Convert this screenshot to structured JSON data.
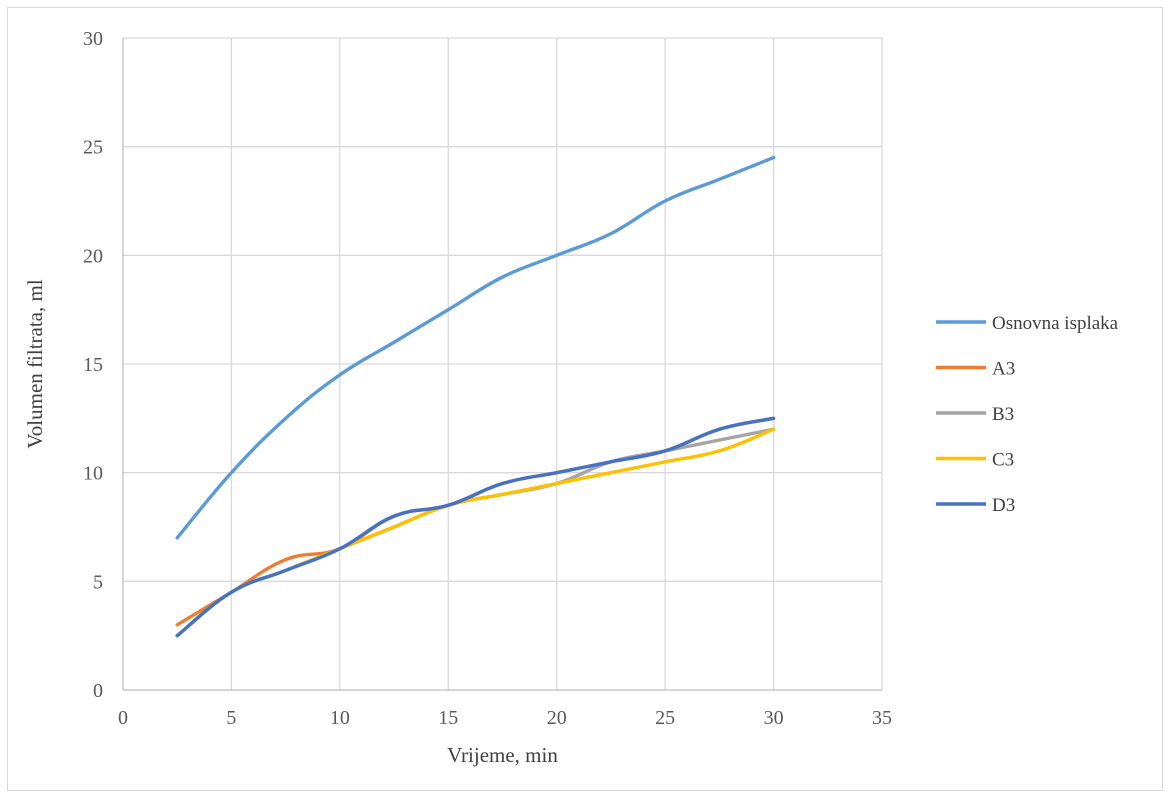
{
  "chart_data": {
    "type": "line",
    "title": "",
    "xlabel": "Vrijeme, min",
    "ylabel": "Volumen filtrata, ml",
    "xlim": [
      0,
      35
    ],
    "ylim": [
      0,
      30
    ],
    "xticks": [
      0,
      5,
      10,
      15,
      20,
      25,
      30,
      35
    ],
    "yticks": [
      0,
      5,
      10,
      15,
      20,
      25,
      30
    ],
    "grid": true,
    "legend_position": "right",
    "x": [
      2.5,
      5,
      7.5,
      10,
      12.5,
      15,
      17.5,
      20,
      22.5,
      25,
      27.5,
      30
    ],
    "series": [
      {
        "name": "Osnovna isplaka",
        "color": "#5B9BD5",
        "values": [
          7,
          10,
          12.5,
          14.5,
          16,
          17.5,
          19,
          20,
          21,
          22.5,
          23.5,
          24.5
        ]
      },
      {
        "name": "A3",
        "color": "#ED7D31",
        "values": [
          3,
          4.5,
          6,
          6.5,
          8,
          8.5,
          9.5,
          10,
          10.5,
          11,
          12,
          12.5
        ]
      },
      {
        "name": "B3",
        "color": "#A5A5A5",
        "values": [
          2.5,
          4.5,
          5.5,
          6.5,
          7.5,
          8.5,
          9,
          9.5,
          10.5,
          11,
          11.5,
          12
        ]
      },
      {
        "name": "C3",
        "color": "#FFC000",
        "values": [
          2.5,
          4.5,
          5.5,
          6.5,
          7.5,
          8.5,
          9,
          9.5,
          10,
          10.5,
          11,
          12
        ]
      },
      {
        "name": "D3",
        "color": "#4472C4",
        "values": [
          2.5,
          4.5,
          5.5,
          6.5,
          8,
          8.5,
          9.5,
          10,
          10.5,
          11,
          12,
          12.5
        ]
      }
    ]
  }
}
